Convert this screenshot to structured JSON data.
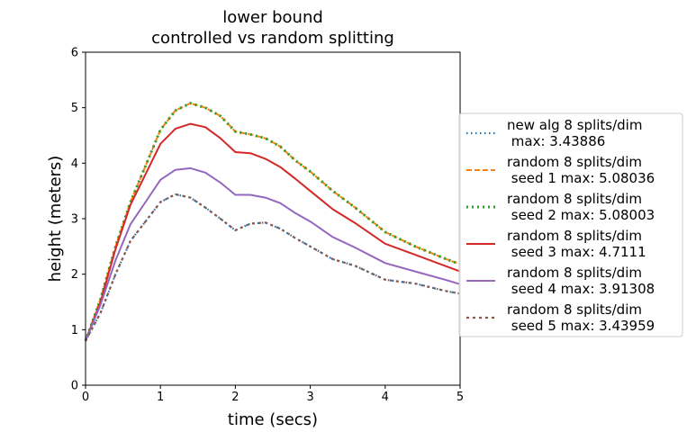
{
  "chart_data": {
    "type": "line",
    "title": "lower bound\ncontrolled vs random splitting",
    "title_lines": [
      "lower bound",
      "controlled vs random splitting"
    ],
    "xlabel": "time (secs)",
    "ylabel": "height (meters)",
    "xlim": [
      0,
      5
    ],
    "ylim": [
      0,
      6
    ],
    "xticks": [
      0,
      1,
      2,
      3,
      4,
      5
    ],
    "yticks": [
      0,
      1,
      2,
      3,
      4,
      5,
      6
    ],
    "grid": false,
    "legend_position": "right",
    "series": [
      {
        "name": "new alg 8 splits/dim\n max: 3.43886",
        "label_lines": [
          "new alg 8 splits/dim",
          " max: 3.43886"
        ],
        "color": "#1f77b4",
        "dash": "1.5,3.5",
        "width": 2.2,
        "x": [
          0,
          0.2,
          0.4,
          0.6,
          0.8,
          1.0,
          1.2,
          1.4,
          1.6,
          1.8,
          2.0,
          2.2,
          2.4,
          2.6,
          2.8,
          3.0,
          3.3,
          3.6,
          4.0,
          4.4,
          4.8,
          5.0
        ],
        "y": [
          0.8,
          1.3,
          2.0,
          2.6,
          2.95,
          3.3,
          3.44,
          3.38,
          3.2,
          3.0,
          2.79,
          2.91,
          2.93,
          2.82,
          2.65,
          2.5,
          2.27,
          2.15,
          1.9,
          1.83,
          1.7,
          1.65
        ]
      },
      {
        "name": "random 8 splits/dim\n seed 1 max: 5.08036",
        "label_lines": [
          "random 8 splits/dim",
          " seed 1 max: 5.08036"
        ],
        "color": "#ff7f0e",
        "dash": "6,3",
        "width": 2,
        "x": [
          0,
          0.2,
          0.4,
          0.6,
          0.8,
          1.0,
          1.2,
          1.4,
          1.6,
          1.8,
          2.0,
          2.2,
          2.4,
          2.6,
          2.8,
          3.0,
          3.3,
          3.6,
          4.0,
          4.4,
          4.8,
          5.0
        ],
        "y": [
          0.8,
          1.55,
          2.5,
          3.3,
          3.95,
          4.6,
          4.95,
          5.08,
          5.0,
          4.85,
          4.57,
          4.52,
          4.45,
          4.3,
          4.05,
          3.85,
          3.5,
          3.2,
          2.76,
          2.5,
          2.28,
          2.18
        ]
      },
      {
        "name": "random 8 splits/dim\n seed 2 max: 5.08003",
        "label_lines": [
          "random 8 splits/dim",
          " seed 2 max: 5.08003"
        ],
        "color": "#2ca02c",
        "dash": "2,4",
        "width": 3,
        "x": [
          0,
          0.2,
          0.4,
          0.6,
          0.8,
          1.0,
          1.2,
          1.4,
          1.6,
          1.8,
          2.0,
          2.2,
          2.4,
          2.6,
          2.8,
          3.0,
          3.3,
          3.6,
          4.0,
          4.4,
          4.8,
          5.0
        ],
        "y": [
          0.8,
          1.55,
          2.5,
          3.3,
          3.95,
          4.6,
          4.95,
          5.08,
          5.0,
          4.85,
          4.57,
          4.52,
          4.45,
          4.3,
          4.05,
          3.85,
          3.5,
          3.2,
          2.76,
          2.5,
          2.28,
          2.18
        ]
      },
      {
        "name": "random 8 splits/dim\n seed 3 max: 4.7111",
        "label_lines": [
          "random 8 splits/dim",
          " seed 3 max: 4.7111"
        ],
        "color": "#d62728",
        "dash": "",
        "width": 2,
        "x": [
          0,
          0.2,
          0.4,
          0.6,
          0.8,
          1.0,
          1.2,
          1.4,
          1.6,
          1.8,
          2.0,
          2.2,
          2.4,
          2.6,
          2.8,
          3.0,
          3.3,
          3.6,
          4.0,
          4.4,
          4.8,
          5.0
        ],
        "y": [
          0.8,
          1.5,
          2.45,
          3.25,
          3.8,
          4.35,
          4.62,
          4.71,
          4.65,
          4.45,
          4.2,
          4.18,
          4.08,
          3.93,
          3.72,
          3.5,
          3.17,
          2.92,
          2.55,
          2.35,
          2.15,
          2.05
        ]
      },
      {
        "name": "random 8 splits/dim\n seed 4 max: 3.91308",
        "label_lines": [
          "random 8 splits/dim",
          " seed 4 max: 3.91308"
        ],
        "color": "#9467bd",
        "dash": "",
        "width": 2,
        "x": [
          0,
          0.2,
          0.4,
          0.6,
          0.8,
          1.0,
          1.2,
          1.4,
          1.6,
          1.8,
          2.0,
          2.2,
          2.4,
          2.6,
          2.8,
          3.0,
          3.3,
          3.6,
          4.0,
          4.4,
          4.8,
          5.0
        ],
        "y": [
          0.8,
          1.45,
          2.25,
          2.9,
          3.3,
          3.7,
          3.88,
          3.91,
          3.83,
          3.65,
          3.43,
          3.43,
          3.38,
          3.28,
          3.1,
          2.95,
          2.67,
          2.48,
          2.2,
          2.05,
          1.9,
          1.82
        ]
      },
      {
        "name": "random 8 splits/dim\n seed 5 max: 3.43959",
        "label_lines": [
          "random 8 splits/dim",
          " seed 5 max: 3.43959"
        ],
        "color": "#8c564b",
        "dash": "3,4",
        "width": 2.2,
        "x": [
          0,
          0.2,
          0.4,
          0.6,
          0.8,
          1.0,
          1.2,
          1.4,
          1.6,
          1.8,
          2.0,
          2.2,
          2.4,
          2.6,
          2.8,
          3.0,
          3.3,
          3.6,
          4.0,
          4.4,
          4.8,
          5.0
        ],
        "y": [
          0.8,
          1.3,
          2.0,
          2.6,
          2.95,
          3.3,
          3.44,
          3.38,
          3.2,
          3.0,
          2.79,
          2.91,
          2.93,
          2.82,
          2.65,
          2.5,
          2.27,
          2.15,
          1.9,
          1.83,
          1.7,
          1.65
        ]
      }
    ]
  }
}
